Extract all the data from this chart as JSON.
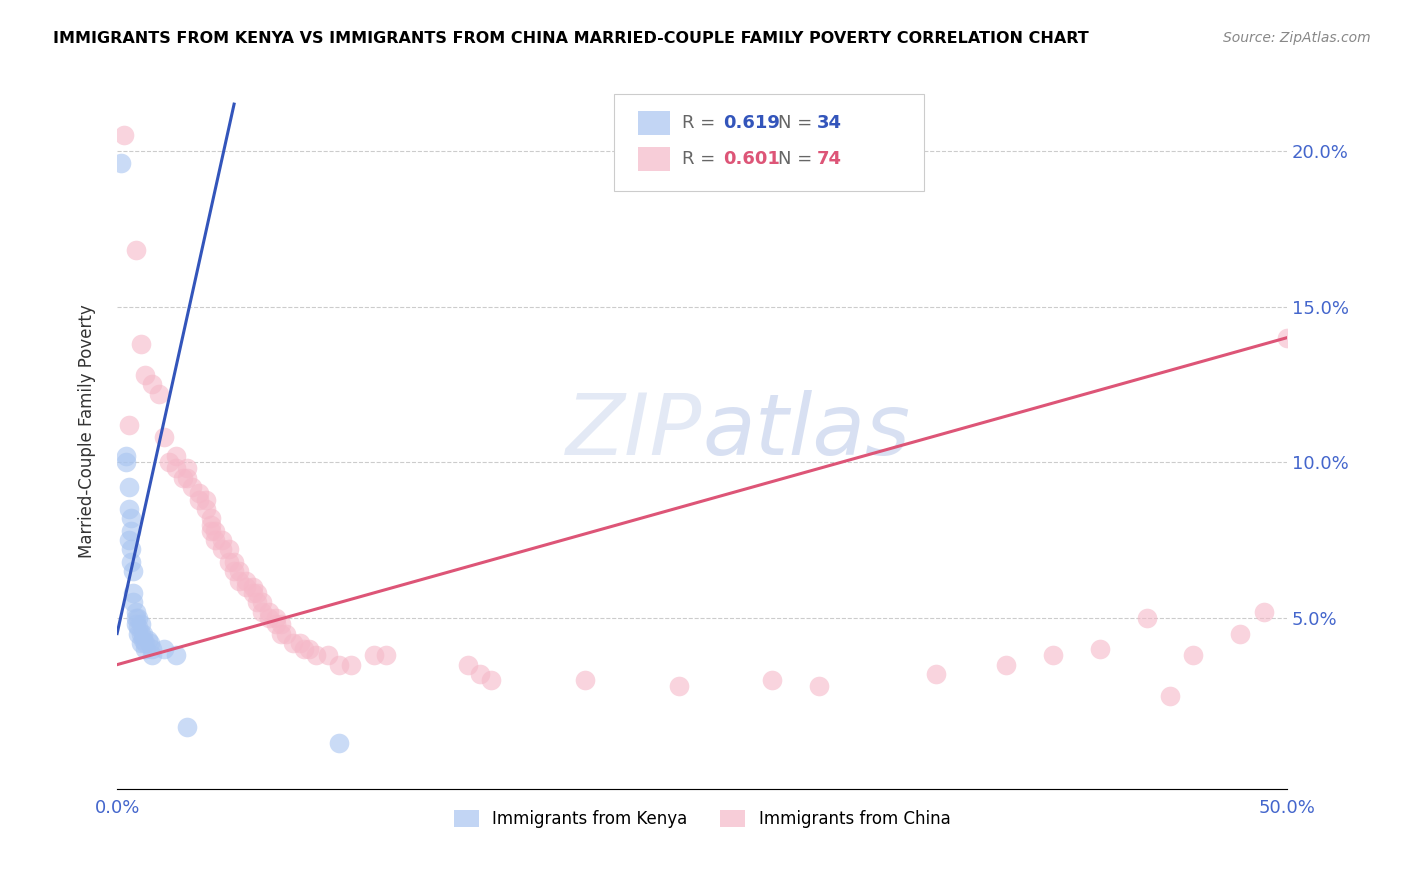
{
  "title": "IMMIGRANTS FROM KENYA VS IMMIGRANTS FROM CHINA MARRIED-COUPLE FAMILY POVERTY CORRELATION CHART",
  "source": "Source: ZipAtlas.com",
  "ylabel": "Married-Couple Family Poverty",
  "ytick_labels": [
    "5.0%",
    "10.0%",
    "15.0%",
    "20.0%"
  ],
  "ytick_values": [
    0.05,
    0.1,
    0.15,
    0.2
  ],
  "kenya_R": 0.619,
  "kenya_N": 34,
  "china_R": 0.601,
  "china_N": 74,
  "xlim": [
    0.0,
    0.5
  ],
  "ylim": [
    -0.005,
    0.225
  ],
  "kenya_color": "#a8c4f0",
  "china_color": "#f5b8c8",
  "kenya_line_color": "#3355bb",
  "china_line_color": "#dd5577",
  "kenya_line_color_bold": "#2255cc",
  "china_line_color_bold": "#cc4466",
  "watermark_color": "#d8e4f5",
  "kenya_points": [
    [
      0.0015,
      0.196
    ],
    [
      0.004,
      0.1
    ],
    [
      0.004,
      0.102
    ],
    [
      0.005,
      0.092
    ],
    [
      0.005,
      0.085
    ],
    [
      0.005,
      0.075
    ],
    [
      0.006,
      0.082
    ],
    [
      0.006,
      0.078
    ],
    [
      0.006,
      0.072
    ],
    [
      0.006,
      0.068
    ],
    [
      0.007,
      0.065
    ],
    [
      0.007,
      0.058
    ],
    [
      0.007,
      0.055
    ],
    [
      0.008,
      0.052
    ],
    [
      0.008,
      0.05
    ],
    [
      0.008,
      0.048
    ],
    [
      0.009,
      0.05
    ],
    [
      0.009,
      0.047
    ],
    [
      0.009,
      0.045
    ],
    [
      0.01,
      0.048
    ],
    [
      0.01,
      0.045
    ],
    [
      0.01,
      0.042
    ],
    [
      0.011,
      0.045
    ],
    [
      0.011,
      0.043
    ],
    [
      0.012,
      0.042
    ],
    [
      0.012,
      0.04
    ],
    [
      0.013,
      0.043
    ],
    [
      0.014,
      0.042
    ],
    [
      0.015,
      0.04
    ],
    [
      0.015,
      0.038
    ],
    [
      0.02,
      0.04
    ],
    [
      0.025,
      0.038
    ],
    [
      0.03,
      0.015
    ],
    [
      0.095,
      0.01
    ]
  ],
  "china_points": [
    [
      0.003,
      0.205
    ],
    [
      0.008,
      0.168
    ],
    [
      0.01,
      0.138
    ],
    [
      0.012,
      0.128
    ],
    [
      0.015,
      0.125
    ],
    [
      0.018,
      0.122
    ],
    [
      0.005,
      0.112
    ],
    [
      0.02,
      0.108
    ],
    [
      0.022,
      0.1
    ],
    [
      0.025,
      0.102
    ],
    [
      0.025,
      0.098
    ],
    [
      0.028,
      0.095
    ],
    [
      0.03,
      0.098
    ],
    [
      0.03,
      0.095
    ],
    [
      0.032,
      0.092
    ],
    [
      0.035,
      0.09
    ],
    [
      0.035,
      0.088
    ],
    [
      0.038,
      0.088
    ],
    [
      0.038,
      0.085
    ],
    [
      0.04,
      0.082
    ],
    [
      0.04,
      0.08
    ],
    [
      0.04,
      0.078
    ],
    [
      0.042,
      0.078
    ],
    [
      0.042,
      0.075
    ],
    [
      0.045,
      0.075
    ],
    [
      0.045,
      0.072
    ],
    [
      0.048,
      0.072
    ],
    [
      0.048,
      0.068
    ],
    [
      0.05,
      0.068
    ],
    [
      0.05,
      0.065
    ],
    [
      0.052,
      0.065
    ],
    [
      0.052,
      0.062
    ],
    [
      0.055,
      0.062
    ],
    [
      0.055,
      0.06
    ],
    [
      0.058,
      0.06
    ],
    [
      0.058,
      0.058
    ],
    [
      0.06,
      0.058
    ],
    [
      0.06,
      0.055
    ],
    [
      0.062,
      0.055
    ],
    [
      0.062,
      0.052
    ],
    [
      0.065,
      0.052
    ],
    [
      0.065,
      0.05
    ],
    [
      0.068,
      0.05
    ],
    [
      0.068,
      0.048
    ],
    [
      0.07,
      0.048
    ],
    [
      0.07,
      0.045
    ],
    [
      0.072,
      0.045
    ],
    [
      0.075,
      0.042
    ],
    [
      0.078,
      0.042
    ],
    [
      0.08,
      0.04
    ],
    [
      0.082,
      0.04
    ],
    [
      0.085,
      0.038
    ],
    [
      0.09,
      0.038
    ],
    [
      0.095,
      0.035
    ],
    [
      0.1,
      0.035
    ],
    [
      0.11,
      0.038
    ],
    [
      0.115,
      0.038
    ],
    [
      0.15,
      0.035
    ],
    [
      0.155,
      0.032
    ],
    [
      0.16,
      0.03
    ],
    [
      0.2,
      0.03
    ],
    [
      0.24,
      0.028
    ],
    [
      0.28,
      0.03
    ],
    [
      0.3,
      0.028
    ],
    [
      0.35,
      0.032
    ],
    [
      0.38,
      0.035
    ],
    [
      0.4,
      0.038
    ],
    [
      0.42,
      0.04
    ],
    [
      0.44,
      0.05
    ],
    [
      0.45,
      0.025
    ],
    [
      0.46,
      0.038
    ],
    [
      0.48,
      0.045
    ],
    [
      0.49,
      0.052
    ],
    [
      0.5,
      0.14
    ]
  ],
  "kenya_line_x": [
    0.0,
    0.05
  ],
  "kenya_line_y": [
    0.045,
    0.215
  ],
  "china_line_x": [
    0.0,
    0.5
  ],
  "china_line_y": [
    0.035,
    0.14
  ]
}
